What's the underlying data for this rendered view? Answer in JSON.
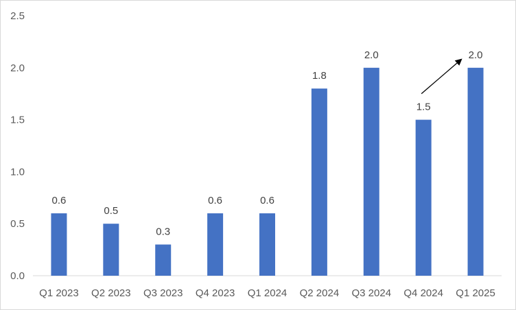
{
  "chart_data": {
    "type": "bar",
    "title": "",
    "xlabel": "",
    "ylabel": "",
    "categories": [
      "Q1 2023",
      "Q2 2023",
      "Q3 2023",
      "Q4 2023",
      "Q1 2024",
      "Q2 2024",
      "Q3 2024",
      "Q4 2024",
      "Q1 2025"
    ],
    "values": [
      0.6,
      0.5,
      0.3,
      0.6,
      0.6,
      1.8,
      2.0,
      1.5,
      2.0
    ],
    "data_labels": [
      "0.6",
      "0.5",
      "0.3",
      "0.6",
      "0.6",
      "1.8",
      "2.0",
      "1.5",
      "2.0"
    ],
    "yticks": [
      0.0,
      0.5,
      1.0,
      1.5,
      2.0,
      2.5
    ],
    "ytick_labels": [
      "0.0",
      "0.5",
      "1.0",
      "1.5",
      "2.0",
      "2.5"
    ],
    "ylim": [
      0,
      2.5
    ],
    "grid": false,
    "legend": "none",
    "bar_color": "#4472C4",
    "annotation": {
      "type": "arrow",
      "from_category": "Q4 2024",
      "to_category": "Q1 2025",
      "description": "upward arrow from Q4 2024 label toward Q1 2025 label"
    }
  }
}
